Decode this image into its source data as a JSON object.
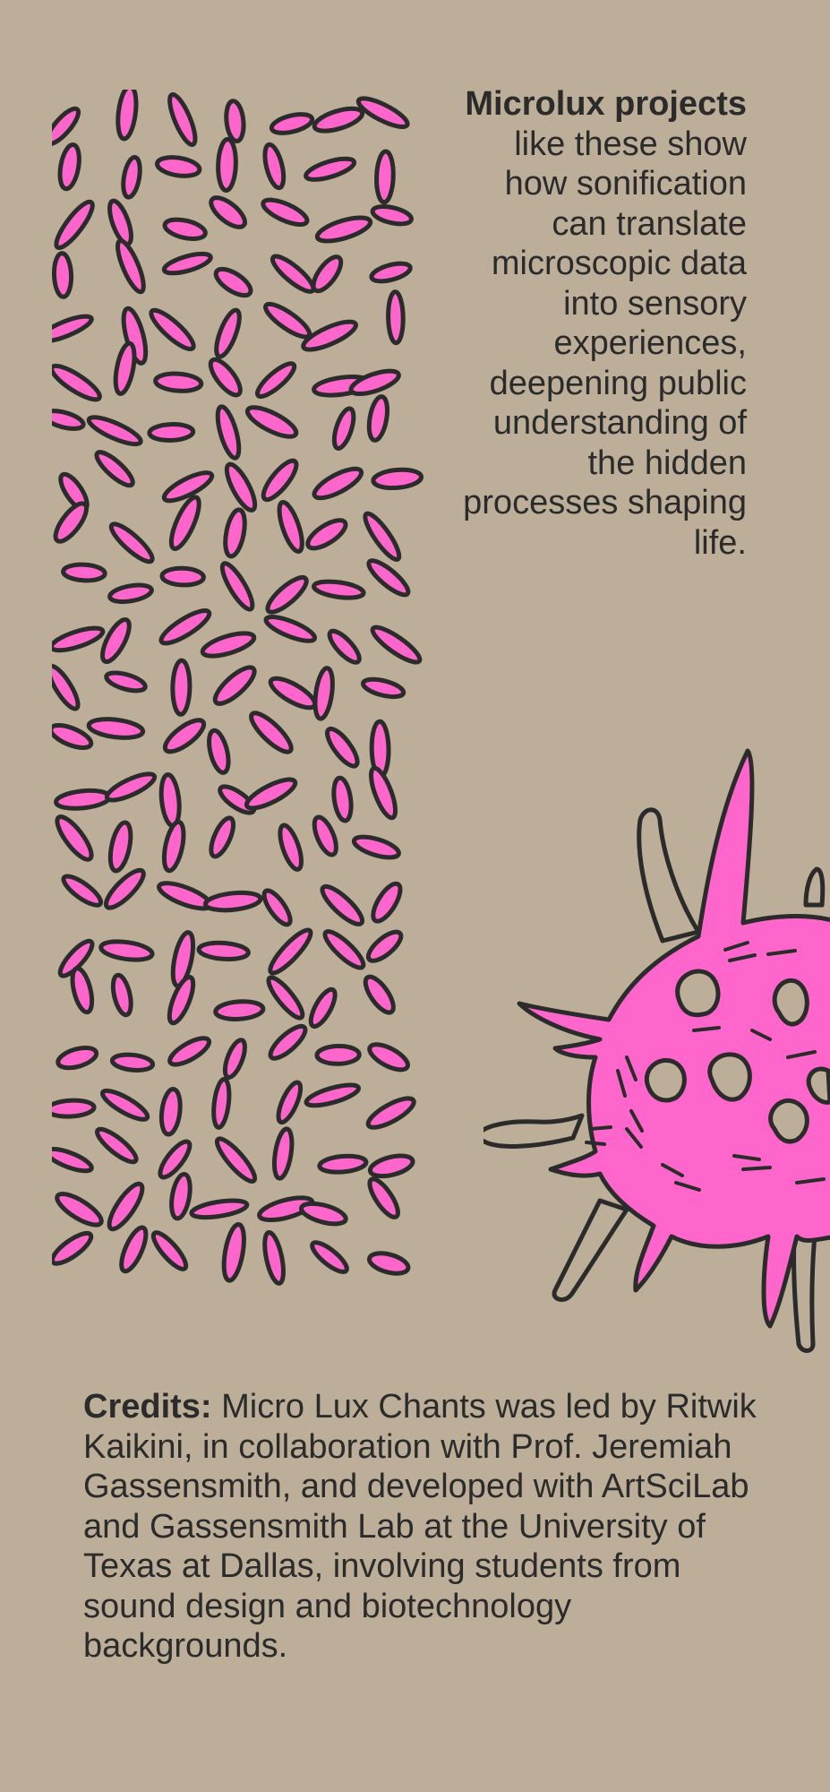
{
  "intro": {
    "bold_lead": "Microlux projects",
    "rest": " like these show how sonification can translate microscopic data into sensory experiences, deepening public understanding of the hidden processes shaping life."
  },
  "credits": {
    "label": "Credits:",
    "text": " Micro Lux Chants was led by Ritwik Kaikini, in collaboration with Prof. Jeremiah Gassensmith, and developed with ArtSciLab and Gassensmith Lab at the University of Texas at Dallas, involving students from sound design and biotechnology backgrounds."
  },
  "colors": {
    "background": "#bcae98",
    "pink": "#ff66cc",
    "outline": "#2b2b2b"
  }
}
